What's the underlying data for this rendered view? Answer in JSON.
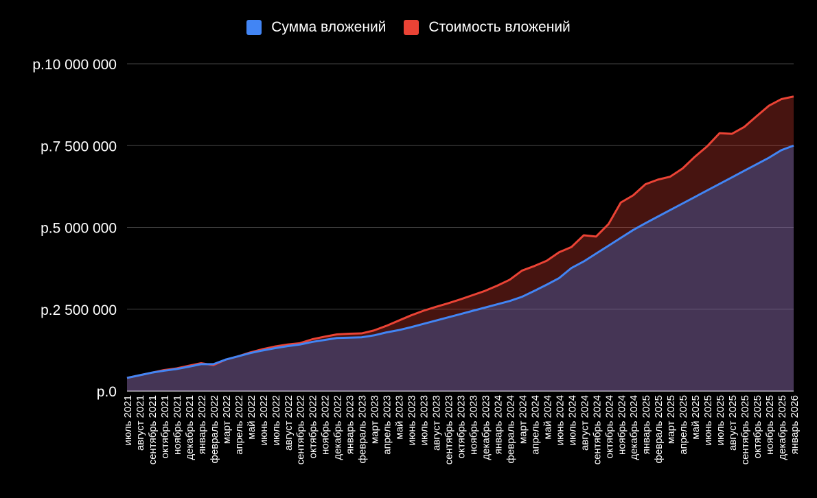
{
  "chart_data": {
    "type": "area",
    "title": "",
    "xlabel": "",
    "ylabel": "",
    "ylim": [
      0,
      10000000
    ],
    "y_ticks": [
      {
        "value": 0,
        "label": "р.0"
      },
      {
        "value": 2500000,
        "label": "р.2 500 000"
      },
      {
        "value": 5000000,
        "label": "р.5 000 000"
      },
      {
        "value": 7500000,
        "label": "р.7 500 000"
      },
      {
        "value": 10000000,
        "label": "р.10 000 000"
      }
    ],
    "grid": true,
    "legend_position": "top-center",
    "categories": [
      "июль 2021",
      "август 2021",
      "сентябрь 2021",
      "октябрь 2021",
      "ноябрь 2021",
      "декабрь 2021",
      "январь 2022",
      "февраль 2022",
      "март 2022",
      "апрель 2022",
      "май 2022",
      "июнь 2022",
      "июль 2022",
      "август 2022",
      "сентябрь 2022",
      "октябрь 2022",
      "ноябрь 2022",
      "декабрь 2022",
      "январь 2023",
      "февраль 2023",
      "март 2023",
      "апрель 2023",
      "май 2023",
      "июнь 2023",
      "июль 2023",
      "август 2023",
      "сентябрь 2023",
      "октябрь 2023",
      "ноябрь 2023",
      "декабрь 2023",
      "январь 2024",
      "февраль 2024",
      "март 2024",
      "апрель 2024",
      "май 2024",
      "июнь 2024",
      "июль 2024",
      "август 2024",
      "сентябрь 2024",
      "октябрь 2024",
      "ноябрь 2024",
      "декабрь 2024",
      "январь 2025",
      "февраль 2025",
      "март 2025",
      "апрель 2025",
      "май 2025",
      "июнь 2025",
      "июль 2025",
      "август 2025",
      "сентябрь 2025",
      "октябрь 2025",
      "ноябрь 2025",
      "декабрь 2025",
      "январь 2026"
    ],
    "series": [
      {
        "name": "Сумма вложений",
        "color": "#4285F4",
        "values": [
          400000,
          480000,
          560000,
          620000,
          670000,
          740000,
          820000,
          820000,
          960000,
          1060000,
          1160000,
          1240000,
          1310000,
          1370000,
          1420000,
          1500000,
          1560000,
          1620000,
          1630000,
          1640000,
          1700000,
          1790000,
          1860000,
          1950000,
          2050000,
          2150000,
          2250000,
          2350000,
          2450000,
          2550000,
          2650000,
          2750000,
          2880000,
          3060000,
          3250000,
          3450000,
          3760000,
          3960000,
          4200000,
          4440000,
          4680000,
          4920000,
          5130000,
          5330000,
          5530000,
          5730000,
          5930000,
          6130000,
          6330000,
          6530000,
          6730000,
          6930000,
          7130000,
          7360000,
          7500000
        ]
      },
      {
        "name": "Стоимость вложений",
        "color": "#EA4335",
        "values": [
          400000,
          480000,
          560000,
          640000,
          690000,
          770000,
          850000,
          790000,
          960000,
          1060000,
          1180000,
          1280000,
          1360000,
          1420000,
          1460000,
          1580000,
          1660000,
          1730000,
          1750000,
          1760000,
          1850000,
          1990000,
          2150000,
          2310000,
          2450000,
          2570000,
          2680000,
          2800000,
          2930000,
          3060000,
          3220000,
          3400000,
          3680000,
          3820000,
          3980000,
          4240000,
          4400000,
          4760000,
          4720000,
          5100000,
          5760000,
          5980000,
          6320000,
          6460000,
          6550000,
          6800000,
          7160000,
          7480000,
          7880000,
          7860000,
          8070000,
          8400000,
          8720000,
          8920000,
          9000000
        ]
      }
    ]
  }
}
